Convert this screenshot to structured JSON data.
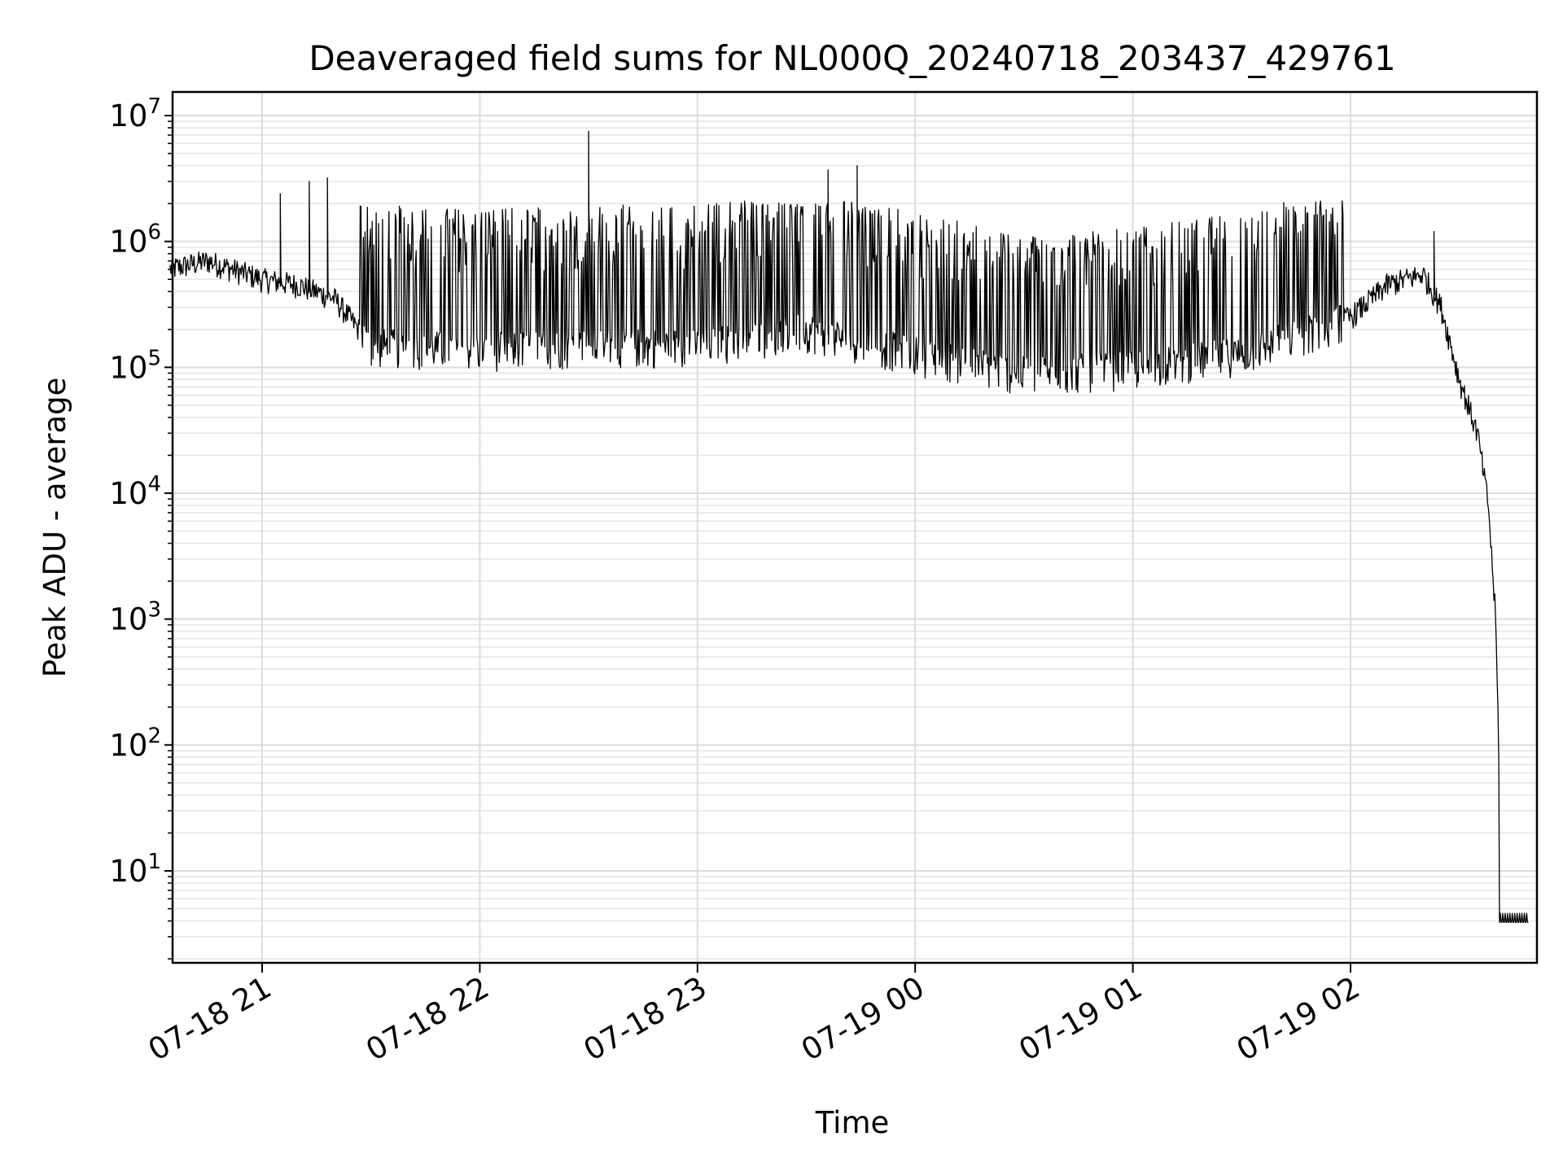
{
  "chart_data": {
    "type": "line",
    "title": "Deaveraged field sums for NL000Q_20240718_203437_429761",
    "xlabel": "Time",
    "ylabel": "Peak ADU - average",
    "yscale": "log",
    "ylim": [
      1.8,
      15000000
    ],
    "xlim": [
      "07-18 20:34:37",
      "07-19 02:49"
    ],
    "grid": true,
    "legend": "none",
    "line_color": "#000000",
    "x_ticks": [
      "07-18 21",
      "07-18 22",
      "07-18 23",
      "07-19 00",
      "07-19 01",
      "07-19 02"
    ],
    "y_ticks": [
      {
        "base": "10",
        "exp": "1"
      },
      {
        "base": "10",
        "exp": "2"
      },
      {
        "base": "10",
        "exp": "3"
      },
      {
        "base": "10",
        "exp": "4"
      },
      {
        "base": "10",
        "exp": "5"
      },
      {
        "base": "10",
        "exp": "6"
      },
      {
        "base": "10",
        "exp": "7"
      }
    ],
    "series": [
      {
        "x": [
          "07-18 20:34",
          "07-18 20:45",
          "07-18 21:00",
          "07-18 21:10",
          "07-18 21:20",
          "07-18 21:30",
          "07-18 22:00",
          "07-18 22:30",
          "07-18 23:00",
          "07-18 23:30",
          "07-19 00:00",
          "07-19 00:30",
          "07-19 01:00",
          "07-19 01:30",
          "07-19 02:00",
          "07-19 02:10",
          "07-19 02:20",
          "07-19 02:25",
          "07-19 02:30",
          "07-19 02:35",
          "07-19 02:38",
          "07-19 02:40",
          "07-19 02:42",
          "07-19 02:49"
        ],
        "y": [
          600000,
          700000,
          500000,
          450000,
          350000,
          150000,
          140000,
          150000,
          150000,
          200000,
          130000,
          90000,
          100000,
          130000,
          250000,
          450000,
          550000,
          300000,
          80000,
          30000,
          8000,
          1000,
          4,
          4
        ]
      }
    ],
    "spikes": [
      {
        "x": "07-18 21:05",
        "y": 2400000
      },
      {
        "x": "07-18 21:13",
        "y": 3000000
      },
      {
        "x": "07-18 21:18",
        "y": 3200000
      },
      {
        "x": "07-18 22:30",
        "y": 7500000
      },
      {
        "x": "07-18 23:36",
        "y": 3700000
      },
      {
        "x": "07-18 23:44",
        "y": 4000000
      },
      {
        "x": "07-19 02:23",
        "y": 1200000
      }
    ]
  }
}
